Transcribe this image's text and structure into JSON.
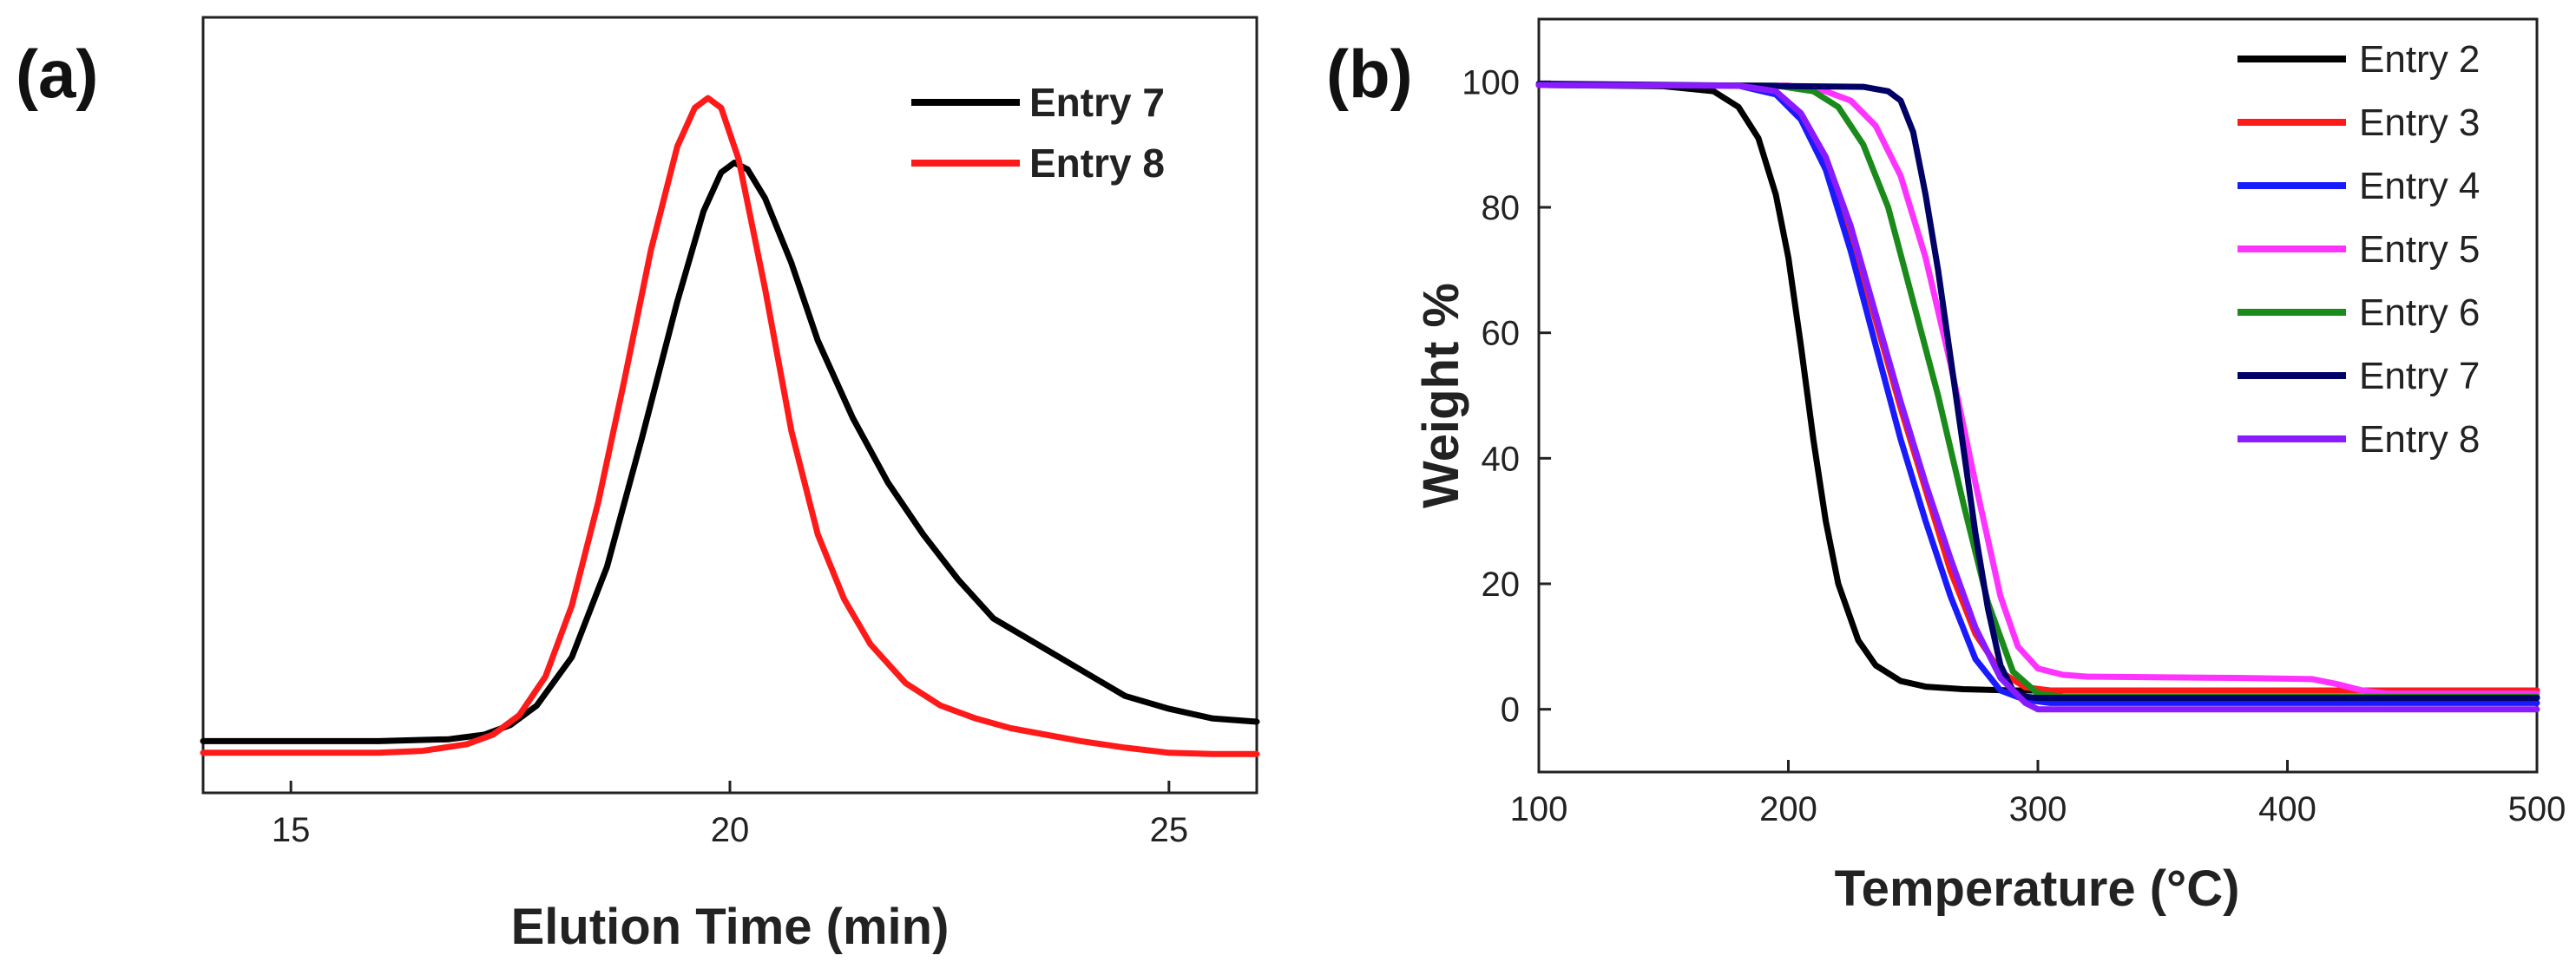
{
  "chart_data": [
    {
      "panel_label": "(a)",
      "type": "line",
      "title": "",
      "xlabel": "Elution Time (min)",
      "ylabel": "",
      "xlim": [
        14,
        26
      ],
      "ylim": [
        -0.08,
        1.12
      ],
      "x_ticks": [
        "15",
        "20",
        "25"
      ],
      "y_ticks": [],
      "legend_position": "top-right",
      "series": [
        {
          "name": "Entry 7",
          "color": "#000000",
          "x": [
            14,
            16,
            16.8,
            17.2,
            17.5,
            17.8,
            18.2,
            18.6,
            19.0,
            19.4,
            19.7,
            19.9,
            20.05,
            20.2,
            20.4,
            20.7,
            21.0,
            21.4,
            21.8,
            22.2,
            22.6,
            23.0,
            23.5,
            24.0,
            24.5,
            25.0,
            25.5,
            26.0
          ],
          "y": [
            0.0,
            0.0,
            0.003,
            0.01,
            0.025,
            0.055,
            0.13,
            0.27,
            0.47,
            0.68,
            0.82,
            0.88,
            0.895,
            0.885,
            0.84,
            0.74,
            0.62,
            0.5,
            0.4,
            0.32,
            0.25,
            0.19,
            0.15,
            0.11,
            0.07,
            0.05,
            0.035,
            0.03
          ]
        },
        {
          "name": "Entry 8",
          "color": "#ff1a1a",
          "x": [
            14,
            16.0,
            16.5,
            17.0,
            17.3,
            17.6,
            17.9,
            18.2,
            18.5,
            18.8,
            19.1,
            19.4,
            19.6,
            19.75,
            19.9,
            20.1,
            20.4,
            20.7,
            21.0,
            21.3,
            21.6,
            22.0,
            22.4,
            22.8,
            23.2,
            23.6,
            24.0,
            24.5,
            25.0,
            25.5,
            26.0
          ],
          "y": [
            -0.018,
            -0.018,
            -0.015,
            -0.005,
            0.01,
            0.04,
            0.1,
            0.21,
            0.37,
            0.56,
            0.76,
            0.92,
            0.98,
            0.995,
            0.98,
            0.9,
            0.7,
            0.48,
            0.32,
            0.22,
            0.15,
            0.09,
            0.055,
            0.035,
            0.02,
            0.01,
            0.0,
            -0.01,
            -0.018,
            -0.02,
            -0.02
          ]
        }
      ]
    },
    {
      "panel_label": "(b)",
      "type": "line",
      "title": "",
      "xlabel": "Temperature (°C)",
      "ylabel": "Weight %",
      "xlim": [
        100,
        500
      ],
      "ylim": [
        -10,
        110
      ],
      "x_ticks": [
        "100",
        "200",
        "300",
        "400",
        "500"
      ],
      "y_ticks": [
        "0",
        "20",
        "40",
        "60",
        "80",
        "100"
      ],
      "legend_position": "top-right",
      "series": [
        {
          "name": "Entry 2",
          "color": "#000000",
          "x": [
            100,
            150,
            170,
            180,
            188,
            195,
            200,
            205,
            210,
            215,
            220,
            228,
            235,
            245,
            255,
            270,
            290,
            500
          ],
          "y": [
            99.5,
            99.3,
            98.5,
            96,
            91,
            82,
            72,
            58,
            43,
            30,
            20,
            11,
            7,
            4.5,
            3.6,
            3.2,
            3,
            3
          ]
        },
        {
          "name": "Entry 3",
          "color": "#ff1a1a",
          "x": [
            100,
            180,
            195,
            205,
            215,
            225,
            235,
            245,
            255,
            265,
            275,
            285,
            295,
            305,
            500
          ],
          "y": [
            99.5,
            99.4,
            98.5,
            95,
            88,
            76,
            62,
            48,
            35,
            22,
            12,
            6,
            3.5,
            3,
            3
          ]
        },
        {
          "name": "Entry 4",
          "color": "#1a1aff",
          "x": [
            100,
            180,
            195,
            205,
            215,
            225,
            235,
            245,
            255,
            265,
            275,
            285,
            295,
            305,
            500
          ],
          "y": [
            99.5,
            99.4,
            98,
            94,
            86,
            73,
            58,
            43,
            30,
            18,
            8,
            3,
            1.5,
            1,
            1
          ]
        },
        {
          "name": "Entry 5",
          "color": "#ff33ff",
          "x": [
            100,
            200,
            215,
            225,
            235,
            245,
            255,
            265,
            275,
            285,
            292,
            300,
            310,
            320,
            380,
            410,
            420,
            430,
            440,
            500
          ],
          "y": [
            99.5,
            99.4,
            98.5,
            97,
            93,
            85,
            72,
            55,
            36,
            18,
            10,
            6.5,
            5.5,
            5.2,
            5,
            4.8,
            4,
            3,
            2.5,
            2.5
          ]
        },
        {
          "name": "Entry 6",
          "color": "#1a8a1a",
          "x": [
            100,
            195,
            210,
            220,
            230,
            240,
            250,
            260,
            270,
            280,
            290,
            300,
            310,
            500
          ],
          "y": [
            99.5,
            99.4,
            98.5,
            96,
            90,
            80,
            65,
            50,
            33,
            17,
            6,
            2.5,
            2,
            2
          ]
        },
        {
          "name": "Entry 7",
          "color": "#000066",
          "x": [
            100,
            230,
            240,
            245,
            250,
            255,
            260,
            265,
            270,
            275,
            280,
            285,
            290,
            295,
            300,
            500
          ],
          "y": [
            99.7,
            99.2,
            98.5,
            97,
            92,
            82,
            70,
            56,
            42,
            28,
            16,
            7,
            3,
            2,
            1.8,
            1.8
          ]
        },
        {
          "name": "Entry 8",
          "color": "#8a1aff",
          "x": [
            100,
            180,
            195,
            205,
            215,
            225,
            235,
            245,
            255,
            265,
            275,
            285,
            295,
            300,
            500
          ],
          "y": [
            99.5,
            99.4,
            98.5,
            95,
            88,
            77,
            63,
            49,
            36,
            24,
            13,
            5,
            1,
            0,
            0
          ]
        }
      ]
    }
  ]
}
